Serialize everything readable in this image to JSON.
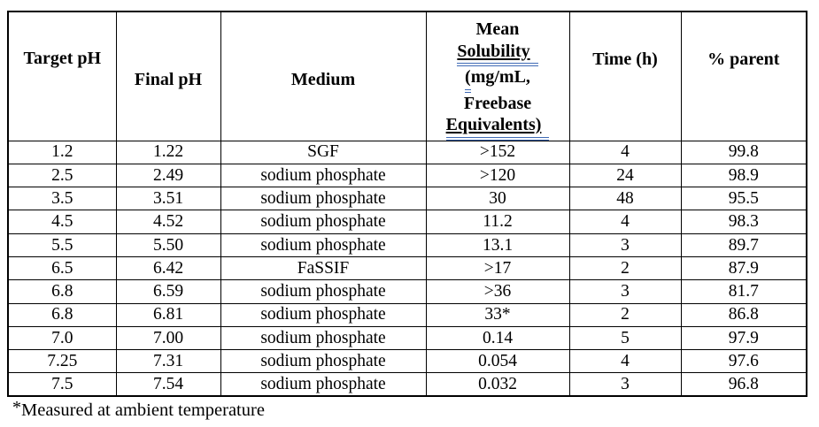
{
  "table": {
    "header": {
      "target_ph": "Target pH",
      "final_ph": "Final pH",
      "medium": "Medium",
      "solubility": {
        "line1": "Mean",
        "line2": "Solubility",
        "line3_flagged": "(",
        "line3_rest": "mg/mL,",
        "line4": "Freebase",
        "line5": "Equivalents)"
      },
      "time": "Time (h)",
      "parent": "% parent"
    },
    "rows": [
      [
        "1.2",
        "1.22",
        "SGF",
        ">152",
        "4",
        "99.8"
      ],
      [
        "2.5",
        "2.49",
        "sodium phosphate",
        ">120",
        "24",
        "98.9"
      ],
      [
        "3.5",
        "3.51",
        "sodium phosphate",
        "30",
        "48",
        "95.5"
      ],
      [
        "4.5",
        "4.52",
        "sodium phosphate",
        "11.2",
        "4",
        "98.3"
      ],
      [
        "5.5",
        "5.50",
        "sodium phosphate",
        "13.1",
        "3",
        "89.7"
      ],
      [
        "6.5",
        "6.42",
        "FaSSIF",
        ">17",
        "2",
        "87.9"
      ],
      [
        "6.8",
        "6.59",
        "sodium phosphate",
        ">36",
        "3",
        "81.7"
      ],
      [
        "6.8",
        "6.81",
        "sodium phosphate",
        "33*",
        "2",
        "86.8"
      ],
      [
        "7.0",
        "7.00",
        "sodium phosphate",
        "0.14",
        "5",
        "97.9"
      ],
      [
        "7.25",
        "7.31",
        "sodium phosphate",
        "0.054",
        "4",
        "97.6"
      ],
      [
        "7.5",
        "7.54",
        "sodium phosphate",
        "0.032",
        "3",
        "96.8"
      ]
    ]
  },
  "footnote": {
    "marker": "*",
    "text": "Measured at ambient temperature"
  },
  "colors": {
    "grammar_flag_blue": "#3f6ab5",
    "border": "#000000",
    "text": "#000000",
    "background": "#ffffff"
  }
}
